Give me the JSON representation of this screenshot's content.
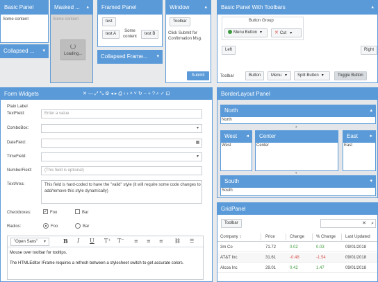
{
  "basic_panel": {
    "title": "Basic Panel",
    "content": "Some content"
  },
  "masked_panel": {
    "title": "Masked ...",
    "content": "Some content",
    "loading": "Loading..."
  },
  "framed_panel": {
    "title": "Framed Panel",
    "btn_test": "test",
    "btn_testa": "test A",
    "btn_testb": "test B",
    "content": "Some content"
  },
  "window": {
    "title": "Window",
    "toolbar_btn": "Toolbar",
    "message": "Click Submit for Confirmation Msg.",
    "submit": "Submit"
  },
  "toolbars_panel": {
    "title": "Basic Panel With Toolbars",
    "button_group": "Button Group",
    "menu_button": "Menu Button",
    "cut": "Cut",
    "left": "Left",
    "right": "Right",
    "toolbar_label": "Toolbar",
    "button": "Button",
    "menu": "Menu",
    "split_button": "Split Button",
    "toggle_button": "Toggle Button"
  },
  "collapsed_panel": {
    "title": "Collapsed ..."
  },
  "collapsed_frame": {
    "title": "Collapsed Frame..."
  },
  "form_widgets": {
    "title": "Form Widgets",
    "plain_label": "Plain Label",
    "textfield_label": "TextField:",
    "textfield_placeholder": "Enter a value",
    "combobox_label": "ComboBox:",
    "datefield_label": "DateField:",
    "timefield_label": "TimeField:",
    "numberfield_label": "NumberField:",
    "numberfield_placeholder": "(This field is optional)",
    "textarea_label": "TextArea:",
    "textarea_value": "This field is hard-coded to have the \"valid\" style (it will require some code changes to add/remove this style dynamically)",
    "checkboxes_label": "Checkboxes:",
    "check_foo": "Foo",
    "check_bar": "Bar",
    "radios_label": "Radios:",
    "radio_foo": "Foo",
    "radio_bar": "Bar",
    "font_select": "\"Open Sans\"",
    "editor_line1": "Mouse over toolbar for tooltips.",
    "editor_line2": "The HTMLEditor IFrame requires a refresh between a stylesheet switch to get accurate colors."
  },
  "border_layout": {
    "title": "BorderLayout Panel",
    "north": "North",
    "west": "West",
    "center": "Center",
    "east": "East",
    "south": "South"
  },
  "grid_panel": {
    "title": "GridPanel",
    "toolbar": "Toolbar",
    "columns": [
      "Company",
      "Price",
      "Change",
      "% Change",
      "Last Updated"
    ],
    "rows": [
      [
        "3m Co",
        "71.72",
        "0.02",
        "0.03",
        "09/01/2018"
      ],
      [
        "AT&T Inc",
        "31.61",
        "-0.48",
        "-1.54",
        "09/01/2018"
      ],
      [
        "Alcoa Inc",
        "29.01",
        "0.42",
        "1.47",
        "09/01/2018"
      ]
    ]
  },
  "colors": {
    "accent": "#5a9ad8",
    "background": "#e9eaec",
    "red": "#d9534f",
    "green": "#3c9a3c"
  }
}
